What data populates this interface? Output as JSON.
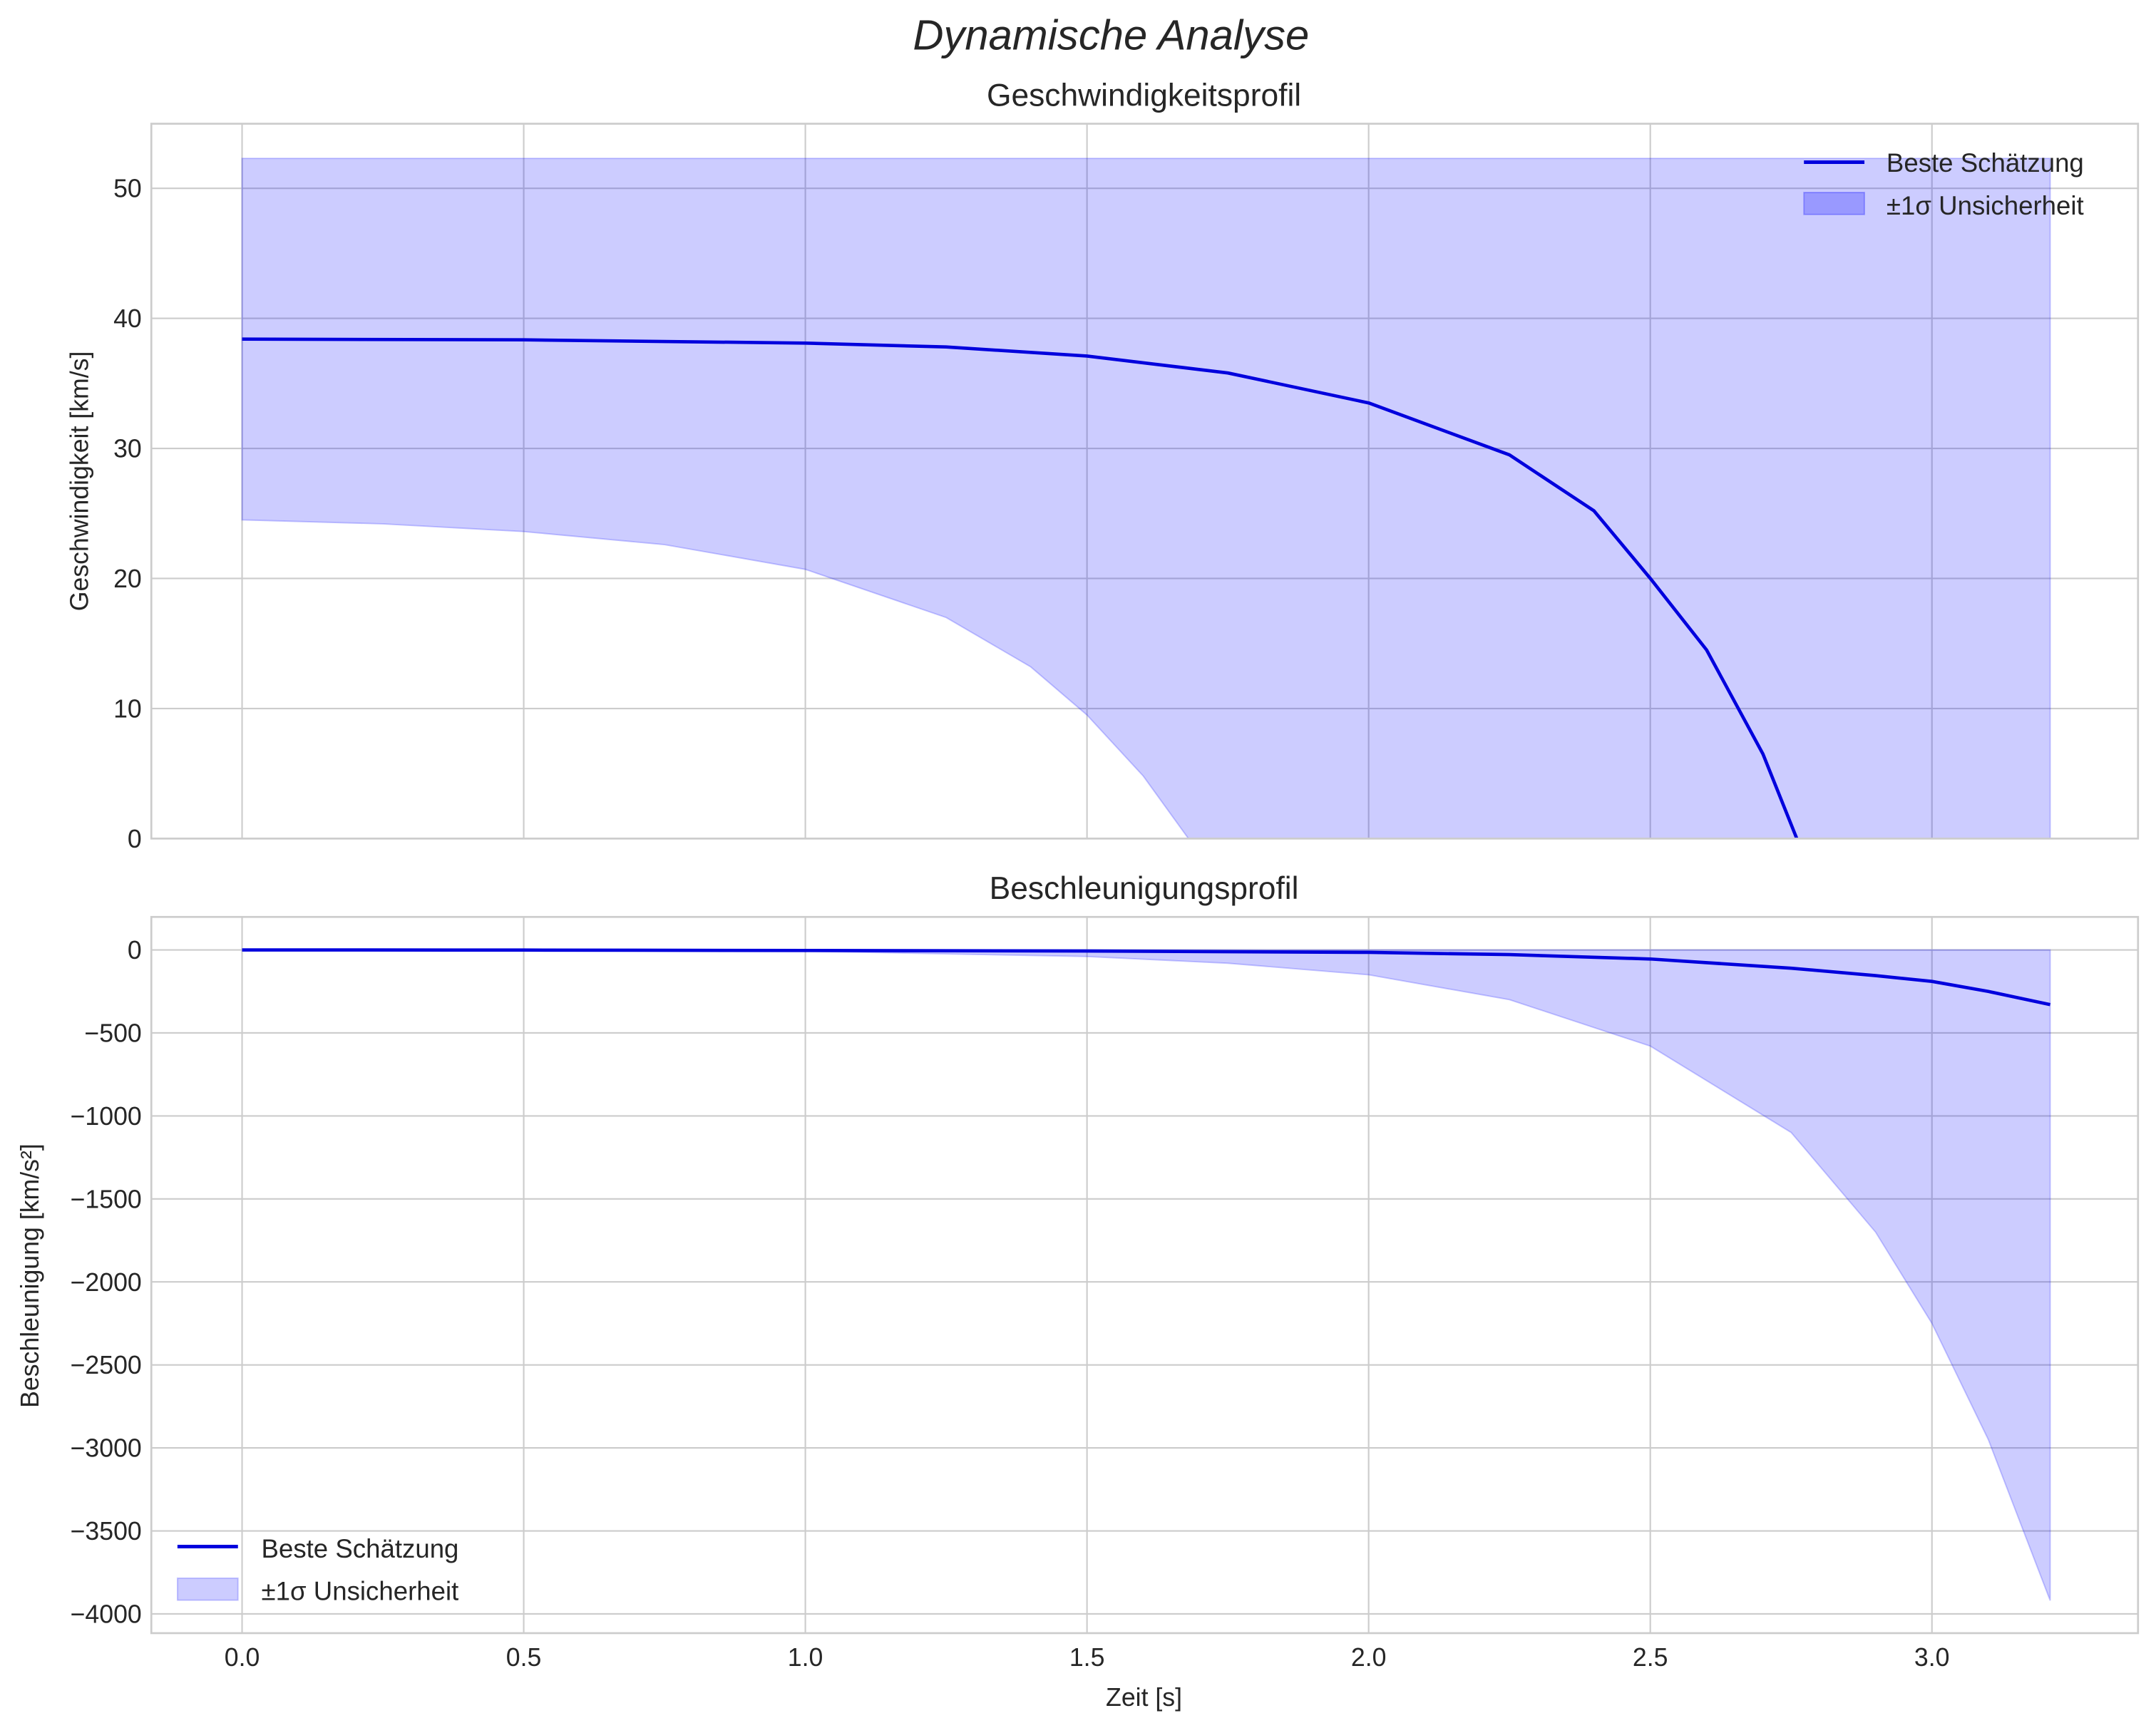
{
  "figure": {
    "suptitle": "Dynamische Analyse",
    "colors": {
      "line": "#0000dd",
      "band": "#0000ff",
      "band_alpha": 0.2,
      "grid": "#cccccc",
      "text": "#262626"
    }
  },
  "top": {
    "title": "Geschwindigkeitsprofil",
    "ylabel": "Geschwindigkeit [km/s]",
    "yticks": [
      "0",
      "10",
      "20",
      "30",
      "40",
      "50"
    ],
    "legend": {
      "line_label": "Beste Schätzung",
      "band_label": "±1σ Unsicherheit",
      "position": "upper right"
    }
  },
  "bottom": {
    "title": "Beschleunigungsprofil",
    "ylabel": "Beschleunigung [km/s²]",
    "xlabel": "Zeit [s]",
    "yticks": [
      "0",
      "−500",
      "−1000",
      "−1500",
      "−2000",
      "−2500",
      "−3000",
      "−3500",
      "−4000"
    ],
    "xticks": [
      "0.0",
      "0.5",
      "1.0",
      "1.5",
      "2.0",
      "2.5",
      "3.0"
    ],
    "legend": {
      "line_label": "Beste Schätzung",
      "band_label": "±1σ Unsicherheit",
      "position": "lower left"
    }
  },
  "chart_data": [
    {
      "type": "line",
      "title": "Geschwindigkeitsprofil",
      "xlabel": "",
      "ylabel": "Geschwindigkeit [km/s]",
      "xlim": [
        -0.16,
        3.37
      ],
      "ylim": [
        0,
        55
      ],
      "grid": true,
      "legend_position": "upper right",
      "series": [
        {
          "name": "Beste Schätzung",
          "kind": "line",
          "x": [
            0.0,
            0.5,
            1.0,
            1.25,
            1.5,
            1.75,
            2.0,
            2.25,
            2.4,
            2.5,
            2.6,
            2.7,
            2.76
          ],
          "y": [
            38.4,
            38.35,
            38.1,
            37.8,
            37.1,
            35.8,
            33.5,
            29.5,
            25.2,
            20.0,
            14.5,
            6.5,
            0.0
          ]
        },
        {
          "name": "±1σ Unsicherheit",
          "kind": "band",
          "x": [
            0.0,
            0.25,
            0.5,
            0.75,
            1.0,
            1.25,
            1.4,
            1.5,
            1.6,
            1.68,
            2.0,
            2.5,
            3.0,
            3.21
          ],
          "lower": [
            24.5,
            24.2,
            23.6,
            22.6,
            20.7,
            17.0,
            13.2,
            9.5,
            4.8,
            0.0,
            0.0,
            0.0,
            0.0,
            0.0
          ],
          "upper": [
            52.3,
            52.3,
            52.3,
            52.3,
            52.3,
            52.3,
            52.3,
            52.3,
            52.3,
            52.3,
            52.3,
            52.3,
            52.3,
            52.3
          ]
        }
      ]
    },
    {
      "type": "line",
      "title": "Beschleunigungsprofil",
      "xlabel": "Zeit [s]",
      "ylabel": "Beschleunigung [km/s²]",
      "xlim": [
        -0.16,
        3.37
      ],
      "ylim": [
        -4100,
        190
      ],
      "grid": true,
      "legend_position": "lower left",
      "series": [
        {
          "name": "Beste Schätzung",
          "kind": "line",
          "x": [
            0.0,
            0.5,
            1.0,
            1.5,
            2.0,
            2.25,
            2.5,
            2.75,
            2.9,
            3.0,
            3.1,
            3.21
          ],
          "y": [
            0,
            -1,
            -3,
            -7,
            -15,
            -28,
            -55,
            -110,
            -155,
            -190,
            -250,
            -330
          ]
        },
        {
          "name": "±1σ Unsicherheit",
          "kind": "band",
          "x": [
            0.0,
            0.5,
            1.0,
            1.5,
            1.75,
            2.0,
            2.25,
            2.5,
            2.75,
            2.9,
            3.0,
            3.1,
            3.21
          ],
          "lower": [
            0,
            -2,
            -8,
            -40,
            -80,
            -150,
            -300,
            -580,
            -1100,
            -1700,
            -2250,
            -2950,
            -3920
          ],
          "upper": [
            0,
            0,
            0,
            0,
            0,
            0,
            0,
            0,
            0,
            0,
            0,
            0,
            0
          ]
        }
      ]
    }
  ]
}
